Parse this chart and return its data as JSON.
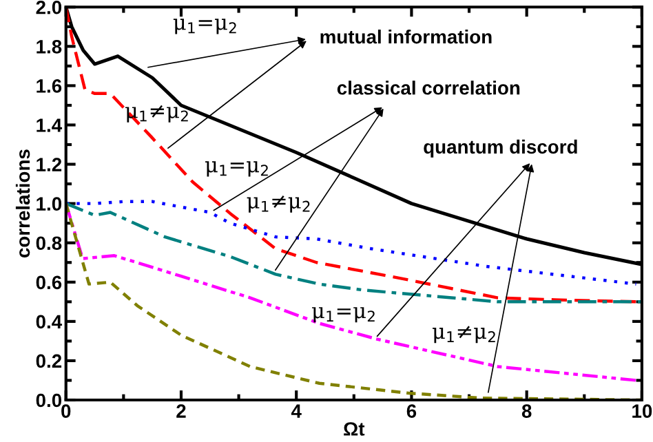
{
  "chart_data": {
    "type": "line",
    "xlabel": "Ωt",
    "ylabel": "correlations",
    "xlim": [
      0,
      10
    ],
    "xticks": [
      0,
      2,
      4,
      6,
      8,
      10
    ],
    "ylim": [
      0,
      2.0
    ],
    "yticks": [
      {
        "value": 0,
        "label": "0.0"
      },
      {
        "value": 0.2,
        "label": "0.2"
      },
      {
        "value": 0.4,
        "label": "0.4"
      },
      {
        "value": 0.6,
        "label": "0.6"
      },
      {
        "value": 0.8,
        "label": "0.8"
      },
      {
        "value": 1.0,
        "label": "1.0"
      },
      {
        "value": 1.2,
        "label": "1.2"
      },
      {
        "value": 1.4,
        "label": "1.4"
      },
      {
        "value": 1.6,
        "label": "1.6"
      },
      {
        "value": 1.8,
        "label": "1.8"
      },
      {
        "value": 2.0,
        "label": "2.0"
      }
    ],
    "grid": false,
    "marker": "none",
    "series": [
      {
        "color": "#000000",
        "line_style": "solid",
        "x": [
          0,
          0.1,
          0.3,
          0.5,
          0.9,
          1.5,
          2,
          3,
          4,
          5,
          6,
          7,
          8,
          9,
          10
        ],
        "values": [
          2.0,
          1.9,
          1.78,
          1.71,
          1.75,
          1.64,
          1.5,
          1.38,
          1.26,
          1.13,
          1.0,
          0.91,
          0.82,
          0.75,
          0.69
        ]
      },
      {
        "color": "#ff0000",
        "line_style": "dashed",
        "x": [
          0,
          0.1,
          0.33,
          0.5,
          0.77,
          1.48,
          2.2,
          2.85,
          3.64,
          4.35,
          5.8,
          7.5,
          8.5,
          9.9
        ],
        "values": [
          2.0,
          1.85,
          1.58,
          1.56,
          1.56,
          1.34,
          1.11,
          0.95,
          0.77,
          0.7,
          0.62,
          0.52,
          0.51,
          0.5
        ]
      },
      {
        "color": "#0000ff",
        "line_style": "dotted",
        "x": [
          0,
          0.5,
          1,
          1.5,
          2.5,
          2.85,
          3.64,
          4.35,
          5.3,
          7.3,
          9.9
        ],
        "values": [
          1.0,
          1.0,
          1.01,
          1.01,
          0.955,
          0.9,
          0.83,
          0.82,
          0.77,
          0.68,
          0.59
        ]
      },
      {
        "color": "#008080",
        "line_style": "dashdot",
        "x": [
          0,
          0.5,
          0.77,
          1.72,
          2.85,
          3.64,
          4.4,
          5.15,
          7.5,
          10
        ],
        "values": [
          1.0,
          0.94,
          0.955,
          0.83,
          0.73,
          0.64,
          0.59,
          0.56,
          0.5,
          0.5
        ]
      },
      {
        "color": "#ff00ff",
        "line_style": "dashdotdot",
        "x": [
          0,
          0.29,
          0.84,
          2.0,
          3.2,
          4.4,
          5.4,
          7.5,
          9.9
        ],
        "values": [
          1.0,
          0.72,
          0.735,
          0.63,
          0.52,
          0.39,
          0.31,
          0.17,
          0.1
        ]
      },
      {
        "color": "#808000",
        "line_style": "shortdash",
        "x": [
          0,
          0.4,
          0.77,
          1.24,
          2.0,
          3.2,
          4.4,
          5.95,
          7.2,
          10
        ],
        "values": [
          1.0,
          0.59,
          0.6,
          0.48,
          0.33,
          0.17,
          0.085,
          0.035,
          0.01,
          0.0
        ]
      }
    ],
    "annotations": [
      {
        "text": "mutual information",
        "x": 1.36,
        "y": 1.69
      },
      {
        "text": "classical correlation",
        "x": 2.51,
        "y": 0.955
      },
      {
        "text": "quantum discord",
        "x": 5.36,
        "y": 0.31
      },
      {
        "text": "μ$_{1}$=μ$_{2}$",
        "x": 1.36,
        "y": 1.69
      },
      {
        "text": "μ$_{1}$≠μ$_{2}$",
        "x": 1.72,
        "y": 1.27
      },
      {
        "text": "μ$_{1}$=μ$_{2}$",
        "x": 2.51,
        "y": 0.955
      },
      {
        "text": "μ$_{1}$≠μ$_{2}$",
        "x": 3.6,
        "y": 0.645
      },
      {
        "text": "μ$_{1}$=μ$_{2}$",
        "x": 5.36,
        "y": 0.31
      },
      {
        "text": "μ$_{1}$≠μ$_{2}$",
        "x": 7.32,
        "y": 0.02
      }
    ]
  }
}
